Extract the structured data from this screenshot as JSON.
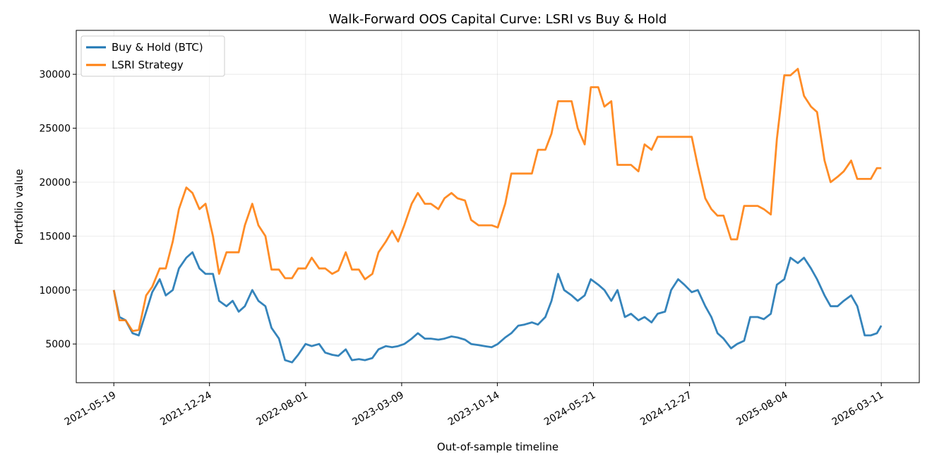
{
  "chart_data": {
    "type": "line",
    "title": "Walk-Forward OOS Capital Curve: LSRI vs Buy & Hold",
    "xlabel": "Out-of-sample timeline",
    "ylabel": "Portfolio value",
    "xlim": [
      "2021-02-22",
      "2026-06-06"
    ],
    "ylim": [
      1413,
      34070
    ],
    "grid": true,
    "legend_position": "top-left",
    "x_ticks": [
      "2021-05-19",
      "2021-12-24",
      "2022-08-01",
      "2023-03-09",
      "2023-10-14",
      "2024-05-21",
      "2024-12-27",
      "2025-08-04",
      "2026-03-11"
    ],
    "y_ticks": [
      5000,
      10000,
      15000,
      20000,
      25000,
      30000
    ],
    "x": [
      "2021-05-19",
      "2021-06-01",
      "2021-06-15",
      "2021-07-01",
      "2021-07-15",
      "2021-08-01",
      "2021-08-15",
      "2021-09-01",
      "2021-09-15",
      "2021-10-01",
      "2021-10-15",
      "2021-11-01",
      "2021-11-15",
      "2021-12-01",
      "2021-12-15",
      "2022-01-01",
      "2022-01-15",
      "2022-02-01",
      "2022-02-15",
      "2022-03-01",
      "2022-03-15",
      "2022-04-01",
      "2022-04-15",
      "2022-05-01",
      "2022-05-15",
      "2022-06-01",
      "2022-06-15",
      "2022-07-01",
      "2022-07-15",
      "2022-08-01",
      "2022-08-15",
      "2022-09-01",
      "2022-09-15",
      "2022-10-01",
      "2022-10-15",
      "2022-11-01",
      "2022-11-15",
      "2022-12-01",
      "2022-12-15",
      "2023-01-01",
      "2023-01-15",
      "2023-02-01",
      "2023-02-15",
      "2023-03-01",
      "2023-03-15",
      "2023-04-01",
      "2023-04-15",
      "2023-05-01",
      "2023-05-15",
      "2023-06-01",
      "2023-06-15",
      "2023-07-01",
      "2023-07-15",
      "2023-08-01",
      "2023-08-15",
      "2023-09-01",
      "2023-09-15",
      "2023-10-01",
      "2023-10-15",
      "2023-11-01",
      "2023-11-15",
      "2023-12-01",
      "2023-12-15",
      "2024-01-01",
      "2024-01-15",
      "2024-02-01",
      "2024-02-15",
      "2024-03-01",
      "2024-03-15",
      "2024-04-01",
      "2024-04-15",
      "2024-05-01",
      "2024-05-15",
      "2024-06-01",
      "2024-06-15",
      "2024-07-01",
      "2024-07-15",
      "2024-08-01",
      "2024-08-15",
      "2024-09-01",
      "2024-09-15",
      "2024-10-01",
      "2024-10-15",
      "2024-11-01",
      "2024-11-15",
      "2024-12-01",
      "2024-12-15",
      "2025-01-01",
      "2025-01-15",
      "2025-02-01",
      "2025-02-15",
      "2025-03-01",
      "2025-03-15",
      "2025-04-01",
      "2025-04-15",
      "2025-05-01",
      "2025-05-15",
      "2025-06-01",
      "2025-06-15",
      "2025-07-01",
      "2025-07-15",
      "2025-08-01",
      "2025-08-15",
      "2025-09-01",
      "2025-09-15",
      "2025-10-01",
      "2025-10-15",
      "2025-11-01",
      "2025-11-15",
      "2025-12-01",
      "2025-12-15",
      "2026-01-01",
      "2026-01-15",
      "2026-02-01",
      "2026-02-15",
      "2026-03-01",
      "2026-03-11"
    ],
    "series": [
      {
        "name": "Buy & Hold (BTC)",
        "color": "#1f77b4",
        "values": [
          10000,
          7500,
          7200,
          6000,
          5800,
          8000,
          9800,
          11000,
          9500,
          10000,
          12000,
          13000,
          13500,
          12000,
          11500,
          11500,
          9000,
          8500,
          9000,
          8000,
          8500,
          10000,
          9000,
          8500,
          6500,
          5500,
          3500,
          3300,
          4000,
          5000,
          4800,
          5000,
          4200,
          4000,
          3900,
          4500,
          3500,
          3600,
          3500,
          3700,
          4500,
          4800,
          4700,
          4800,
          5000,
          5500,
          6000,
          5500,
          5500,
          5400,
          5500,
          5700,
          5600,
          5400,
          5000,
          4900,
          4800,
          4700,
          5000,
          5600,
          6000,
          6700,
          6800,
          7000,
          6800,
          7500,
          9000,
          11500,
          10000,
          9500,
          9000,
          9500,
          11000,
          10500,
          10000,
          9000,
          10000,
          7500,
          7800,
          7200,
          7500,
          7000,
          7800,
          8000,
          10000,
          11000,
          10500,
          9800,
          10000,
          8500,
          7500,
          6000,
          5500,
          4600,
          5000,
          5300,
          7500,
          7500,
          7300,
          7800,
          10500,
          11000,
          13000,
          12500,
          13000,
          12000,
          11000,
          9500,
          8500,
          8500,
          9000,
          9500,
          8500,
          5800,
          5800,
          6000,
          6700
        ]
      },
      {
        "name": "LSRI Strategy",
        "color": "#ff7f0e",
        "values": [
          10000,
          7200,
          7200,
          6200,
          6300,
          9500,
          10300,
          12000,
          12000,
          14500,
          17500,
          19500,
          19000,
          17500,
          18000,
          15000,
          11500,
          13500,
          13500,
          13500,
          16000,
          18000,
          16000,
          15000,
          11900,
          11900,
          11100,
          11100,
          12000,
          12000,
          13000,
          12000,
          12000,
          11500,
          11800,
          13500,
          11900,
          11900,
          11000,
          11500,
          13500,
          14500,
          15500,
          14500,
          16000,
          18000,
          19000,
          18000,
          18000,
          17500,
          18500,
          19000,
          18500,
          18300,
          16500,
          16000,
          16000,
          16000,
          15800,
          18000,
          20800,
          20800,
          20800,
          20800,
          23000,
          23000,
          24500,
          27500,
          27500,
          27500,
          25000,
          23500,
          28800,
          28800,
          27000,
          27500,
          21600,
          21600,
          21600,
          21000,
          23500,
          23000,
          24200,
          24200,
          24200,
          24200,
          24200,
          24200,
          21500,
          18500,
          17500,
          16900,
          16900,
          14700,
          14700,
          17800,
          17800,
          17800,
          17500,
          17000,
          24000,
          29900,
          29900,
          30500,
          28000,
          27000,
          26500,
          22000,
          20000,
          20500,
          21000,
          22000,
          20300,
          20300,
          20300,
          21300,
          21300
        ]
      }
    ]
  }
}
